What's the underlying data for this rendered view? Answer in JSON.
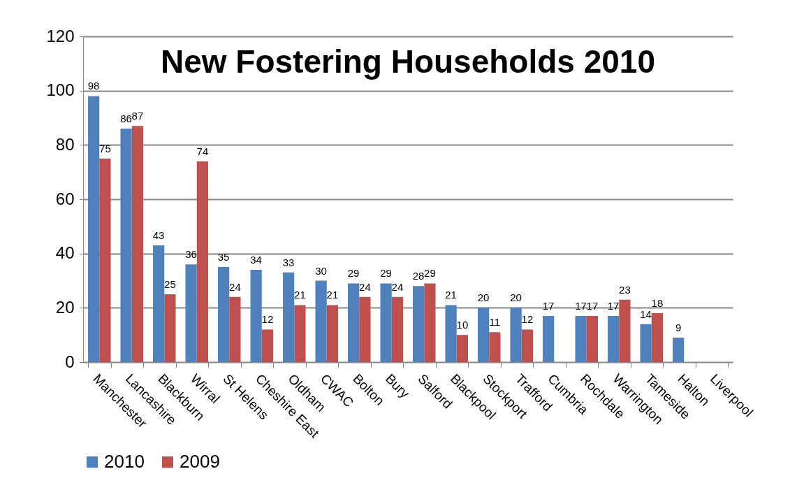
{
  "chart_data": {
    "type": "bar",
    "title": "New Fostering Households 2010",
    "categories": [
      "Manchester",
      "Lancashire",
      "Blackburn",
      "Wirral",
      "St Helens",
      "Cheshire East",
      "Oldham",
      "CWAC",
      "Bolton",
      "Bury",
      "Salford",
      "Blackpool",
      "Stockport",
      "Trafford",
      "Cumbria",
      "Rochdale",
      "Warrington",
      "Tameside",
      "Halton",
      "Liverpool"
    ],
    "series": [
      {
        "name": "2010",
        "color": "#4f81bd",
        "values": [
          98,
          86,
          43,
          36,
          35,
          34,
          33,
          30,
          29,
          29,
          28,
          21,
          20,
          20,
          17,
          17,
          17,
          14,
          9,
          null
        ]
      },
      {
        "name": "2009",
        "color": "#c0504d",
        "values": [
          75,
          87,
          25,
          74,
          24,
          12,
          21,
          21,
          24,
          24,
          29,
          10,
          11,
          12,
          null,
          17,
          23,
          18,
          null,
          null
        ]
      }
    ],
    "ylim": [
      0,
      120
    ],
    "yticks": [
      0,
      20,
      40,
      60,
      80,
      100,
      120
    ],
    "grid": "y",
    "legend": "bottom",
    "data_labels": true
  }
}
